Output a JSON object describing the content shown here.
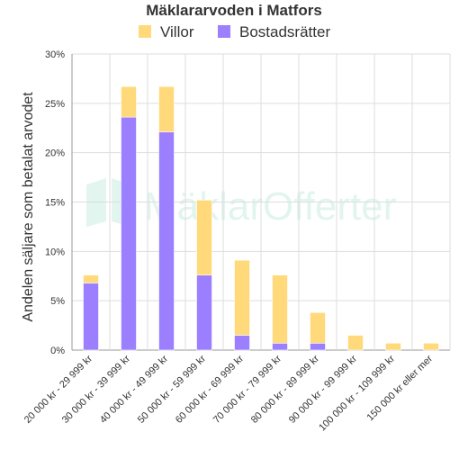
{
  "chart_data": {
    "type": "bar",
    "stacked": true,
    "title": "Mäklararvoden i Matfors",
    "ylabel": "Andelen säljare som betalat arvodet",
    "xlabel": "",
    "ylim": [
      0,
      30
    ],
    "ytick_labels": [
      "0%",
      "5%",
      "10%",
      "15%",
      "20%",
      "25%",
      "30%"
    ],
    "grid": true,
    "legend_position": "top",
    "categories": [
      "20 000 kr - 29 999 kr",
      "30 000 kr - 39 999 kr",
      "40 000 kr - 49 999 kr",
      "50 000 kr - 59 999 kr",
      "60 000 kr - 69 999 kr",
      "70 000 kr - 79 999 kr",
      "80 000 kr - 89 999 kr",
      "90 000 kr - 99 999 kr",
      "100 000 kr - 109 999 kr",
      "150 000 kr eller mer"
    ],
    "series": [
      {
        "name": "Bostadsrätter",
        "color": "#9b7fff",
        "values": [
          6.8,
          23.6,
          22.1,
          7.6,
          1.5,
          0.7,
          0.7,
          0,
          0,
          0
        ]
      },
      {
        "name": "Villor",
        "color": "#ffd97a",
        "values": [
          0.8,
          3.1,
          4.6,
          7.6,
          7.6,
          6.9,
          3.1,
          1.5,
          0.7,
          0.7
        ]
      }
    ],
    "legend_order": [
      "Villor",
      "Bostadsrätter"
    ],
    "watermark": "MäklarOfferter"
  }
}
